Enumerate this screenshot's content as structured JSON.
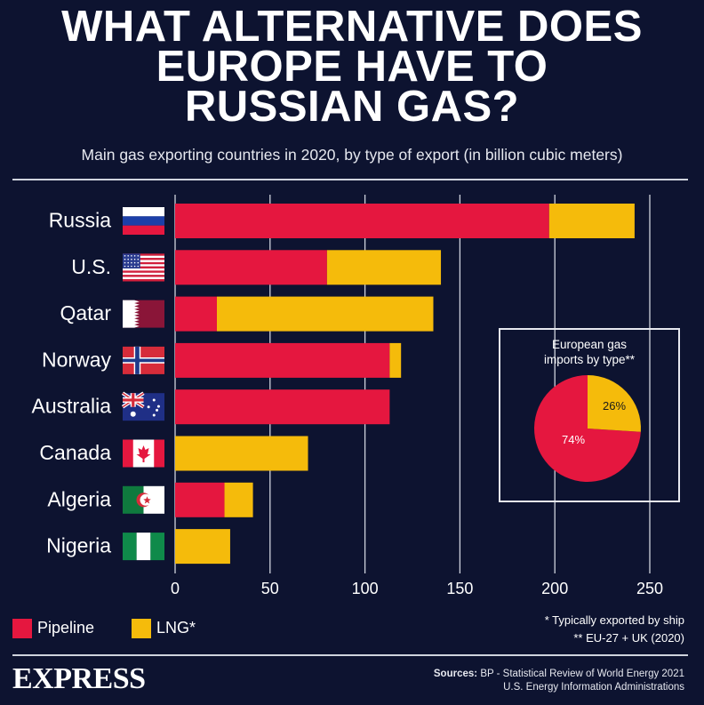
{
  "title_lines": [
    "WHAT ALTERNATIVE DOES",
    "EUROPE HAVE TO",
    "RUSSIAN GAS?"
  ],
  "subtitle": "Main gas exporting countries in 2020, by type of export (in billion cubic meters)",
  "colors": {
    "pipeline": "#e5173f",
    "lng": "#f5bb0b",
    "background": "#0d1330",
    "grid": "#cfd3dd"
  },
  "chart_data": [
    {
      "type": "bar",
      "orientation": "horizontal",
      "stacked": true,
      "categories": [
        "Russia",
        "U.S.",
        "Qatar",
        "Norway",
        "Australia",
        "Canada",
        "Algeria",
        "Nigeria"
      ],
      "flag_icons": [
        "russia-flag-icon",
        "usa-flag-icon",
        "qatar-flag-icon",
        "norway-flag-icon",
        "australia-flag-icon",
        "canada-flag-icon",
        "algeria-flag-icon",
        "nigeria-flag-icon"
      ],
      "series": [
        {
          "name": "Pipeline",
          "values": [
            197,
            80,
            22,
            113,
            113,
            0,
            26,
            0
          ]
        },
        {
          "name": "LNG*",
          "values": [
            45,
            60,
            114,
            6,
            0,
            70,
            15,
            29
          ]
        }
      ],
      "x_ticks": [
        "0",
        "50",
        "100",
        "150",
        "200",
        "250"
      ],
      "xlim": [
        0,
        250
      ],
      "grid": true,
      "legend_position": "bottom-left"
    },
    {
      "type": "pie",
      "title": "European gas imports by type**",
      "title_lines": [
        "European gas",
        "imports by type**"
      ],
      "slices": [
        {
          "name": "Pipeline",
          "value": 74,
          "label": "74%"
        },
        {
          "name": "LNG*",
          "value": 26,
          "label": "26%"
        }
      ]
    }
  ],
  "legend": {
    "pipeline": "Pipeline",
    "lng": "LNG*"
  },
  "notes": [
    "* Typically exported by ship",
    "** EU-27 + UK (2020)"
  ],
  "logo": "EXPRESS",
  "sources": {
    "label": "Sources:",
    "line1": "BP - Statistical Review of World Energy 2021",
    "line2": "U.S. Energy Information Administrations"
  }
}
